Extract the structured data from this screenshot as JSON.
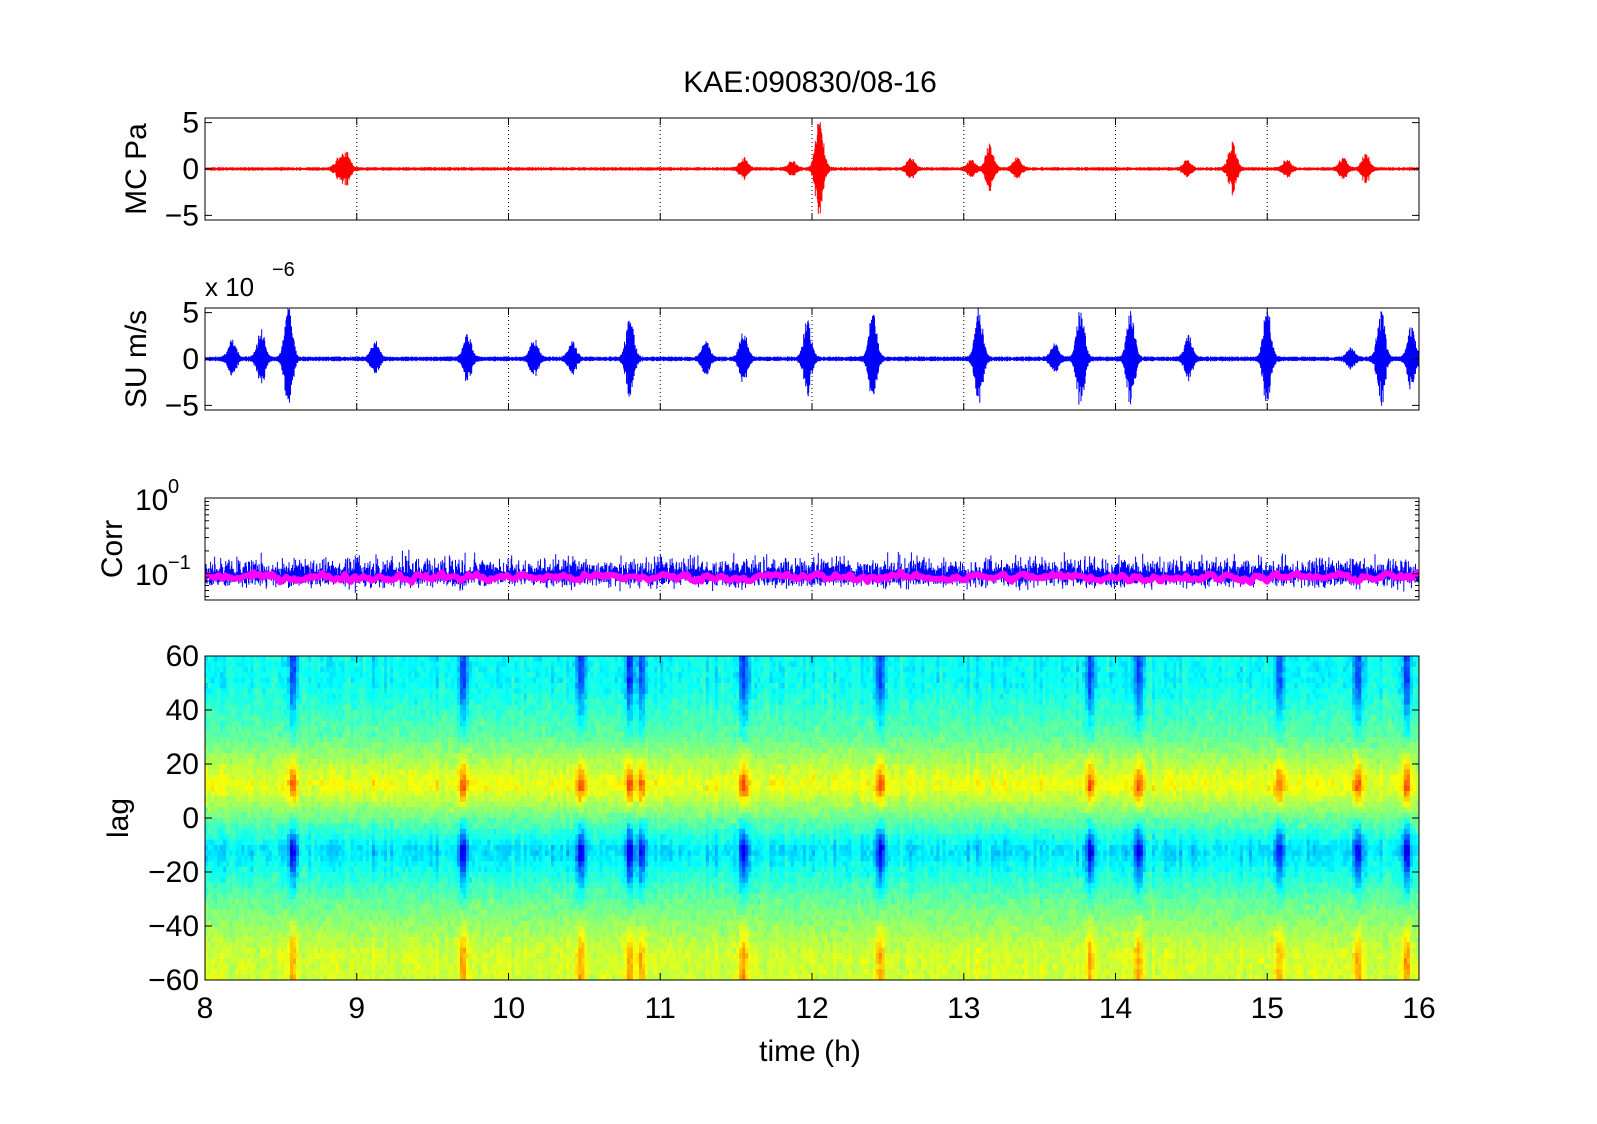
{
  "figure": {
    "title": "KAE:090830/08-16",
    "xlabel": "time (h)"
  },
  "chart_data": [
    {
      "type": "line",
      "panel": "MC",
      "ylabel": "MC Pa",
      "xlim": [
        8,
        16
      ],
      "ylim": [
        -5.5,
        5.5
      ],
      "yticks": [
        -5,
        0,
        5
      ],
      "ytick_labels": [
        "−5",
        "0",
        "5"
      ],
      "xticks": [
        8,
        9,
        10,
        11,
        12,
        13,
        14,
        15,
        16
      ],
      "grid": "x-dotted",
      "color": "#ff0000",
      "noise_amplitude": 0.15,
      "bursts": [
        {
          "x": 8.88,
          "amp": 1.0
        },
        {
          "x": 8.93,
          "amp": 1.8
        },
        {
          "x": 11.55,
          "amp": 1.2
        },
        {
          "x": 11.87,
          "amp": 0.8
        },
        {
          "x": 12.05,
          "amp": 5.5
        },
        {
          "x": 12.65,
          "amp": 1.2
        },
        {
          "x": 13.05,
          "amp": 1.0
        },
        {
          "x": 13.17,
          "amp": 2.8
        },
        {
          "x": 13.35,
          "amp": 1.2
        },
        {
          "x": 14.47,
          "amp": 0.9
        },
        {
          "x": 14.77,
          "amp": 2.9
        },
        {
          "x": 15.13,
          "amp": 1.0
        },
        {
          "x": 15.5,
          "amp": 1.2
        },
        {
          "x": 15.65,
          "amp": 1.6
        }
      ]
    },
    {
      "type": "line",
      "panel": "SU",
      "ylabel": "SU m/s",
      "scale_label": "x 10",
      "scale_exponent": "−6",
      "xlim": [
        8,
        16
      ],
      "ylim": [
        -5.5,
        5.5
      ],
      "yticks": [
        -5,
        0,
        5
      ],
      "ytick_labels": [
        "−5",
        "0",
        "5"
      ],
      "xticks": [
        8,
        9,
        10,
        11,
        12,
        13,
        14,
        15,
        16
      ],
      "grid": "x-dotted",
      "color": "#0000ff",
      "noise_amplitude": 0.2,
      "bursts": [
        {
          "x": 8.18,
          "amp": 2.0
        },
        {
          "x": 8.37,
          "amp": 3.0
        },
        {
          "x": 8.55,
          "amp": 5.5
        },
        {
          "x": 9.12,
          "amp": 2.0
        },
        {
          "x": 9.73,
          "amp": 2.6
        },
        {
          "x": 10.17,
          "amp": 2.2
        },
        {
          "x": 10.42,
          "amp": 1.8
        },
        {
          "x": 10.8,
          "amp": 4.5
        },
        {
          "x": 11.3,
          "amp": 1.8
        },
        {
          "x": 11.55,
          "amp": 3.0
        },
        {
          "x": 11.97,
          "amp": 4.0
        },
        {
          "x": 12.4,
          "amp": 5.0
        },
        {
          "x": 13.1,
          "amp": 5.5
        },
        {
          "x": 13.6,
          "amp": 1.5
        },
        {
          "x": 13.77,
          "amp": 5.5
        },
        {
          "x": 14.1,
          "amp": 5.2
        },
        {
          "x": 14.48,
          "amp": 2.5
        },
        {
          "x": 15.0,
          "amp": 5.5
        },
        {
          "x": 15.55,
          "amp": 1.2
        },
        {
          "x": 15.75,
          "amp": 5.2
        },
        {
          "x": 15.95,
          "amp": 3.5
        }
      ]
    },
    {
      "type": "line",
      "panel": "Corr",
      "ylabel": "Corr",
      "yscale": "log",
      "xlim": [
        8,
        16
      ],
      "ylim": [
        0.045,
        1.0
      ],
      "ytick_labels": [
        {
          "base": "10",
          "exp": "0",
          "value": 1.0
        },
        {
          "base": "10",
          "exp": "−1",
          "value": 0.1
        }
      ],
      "xticks": [
        8,
        9,
        10,
        11,
        12,
        13,
        14,
        15,
        16
      ],
      "grid": "x-dotted",
      "series": [
        {
          "color": "#0000ff",
          "typical": 0.095,
          "spread": [
            0.06,
            0.25
          ],
          "stroke": 1
        },
        {
          "color": "#ff00ff",
          "typical": 0.09,
          "spread": [
            0.07,
            0.13
          ],
          "stroke": 6
        }
      ]
    },
    {
      "type": "heatmap",
      "panel": "lag",
      "ylabel": "lag",
      "xlim": [
        8,
        16
      ],
      "ylim": [
        -60,
        60
      ],
      "yticks": [
        -60,
        -40,
        -20,
        0,
        20,
        40,
        60
      ],
      "ytick_labels": [
        "−60",
        "−40",
        "−20",
        "0",
        "20",
        "40",
        "60"
      ],
      "xticks": [
        8,
        9,
        10,
        11,
        12,
        13,
        14,
        15,
        16
      ],
      "xtick_labels": [
        "8",
        "9",
        "10",
        "11",
        "12",
        "13",
        "14",
        "15",
        "16"
      ],
      "colormap": "jet",
      "rows": [
        {
          "lag": 50,
          "value": 0.38
        },
        {
          "lag": 30,
          "value": 0.47
        },
        {
          "lag": 12,
          "value": 0.62
        },
        {
          "lag": -12,
          "value": 0.34
        },
        {
          "lag": -30,
          "value": 0.47
        },
        {
          "lag": -50,
          "value": 0.58
        }
      ],
      "strong_times": [
        8.58,
        9.7,
        10.48,
        10.8,
        10.88,
        11.55,
        12.45,
        13.83,
        14.15,
        15.08,
        15.6,
        15.92
      ]
    }
  ]
}
